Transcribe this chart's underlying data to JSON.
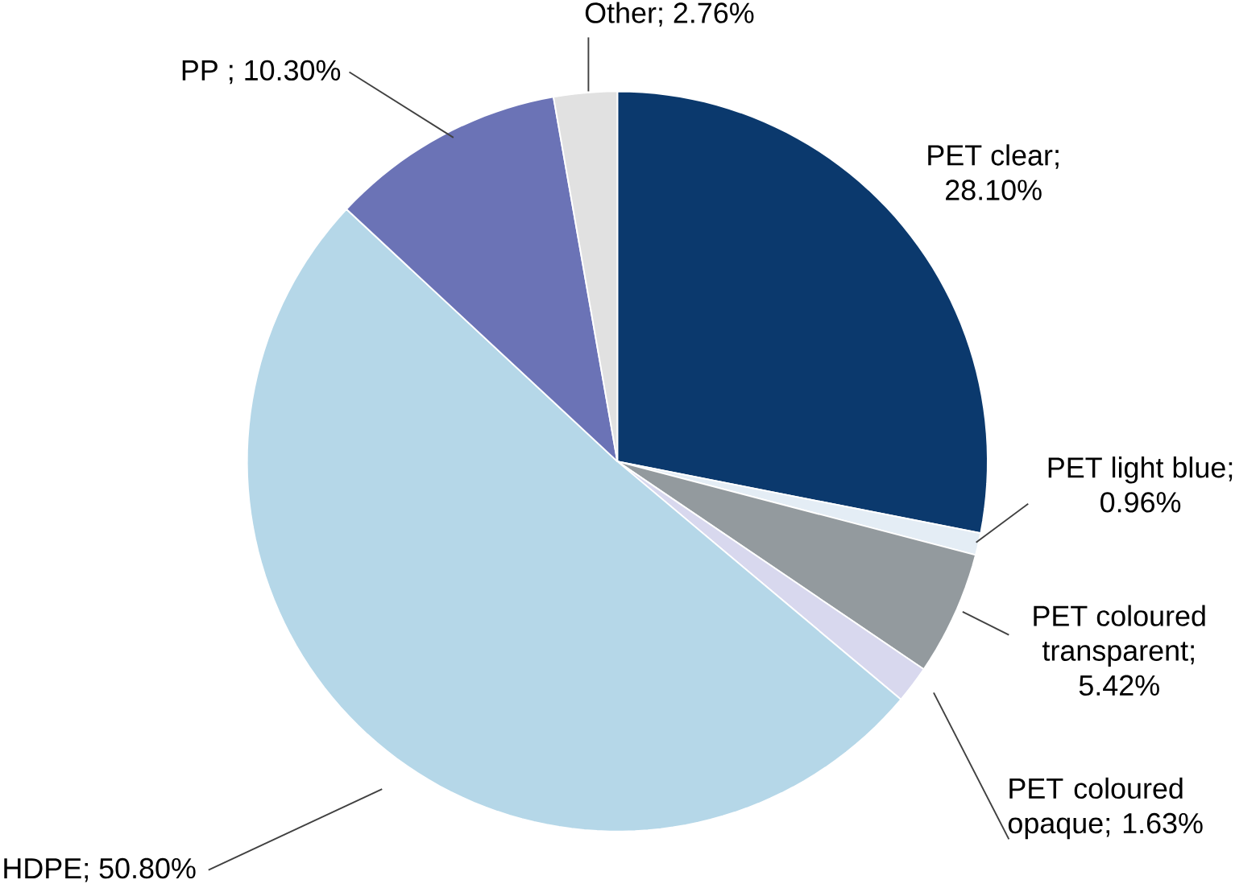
{
  "chart_data": {
    "type": "pie",
    "categories": [
      "PET clear",
      "PET light blue",
      "PET coloured transparent",
      "PET coloured opaque",
      "HDPE",
      "PP",
      "Other"
    ],
    "values": [
      28.1,
      0.96,
      5.42,
      1.63,
      50.8,
      10.3,
      2.76
    ],
    "value_labels": [
      "; 28.10%",
      "; 0.96%",
      "; 5.42%",
      "; 1.63%",
      "; 50.80%",
      " ; 10.30%",
      "; 2.76%"
    ],
    "colors": [
      "#0b396d",
      "#e4edf5",
      "#939a9e",
      "#d8d8ee",
      "#b5d7e8",
      "#6b73b6",
      "#e1e1e1"
    ]
  }
}
